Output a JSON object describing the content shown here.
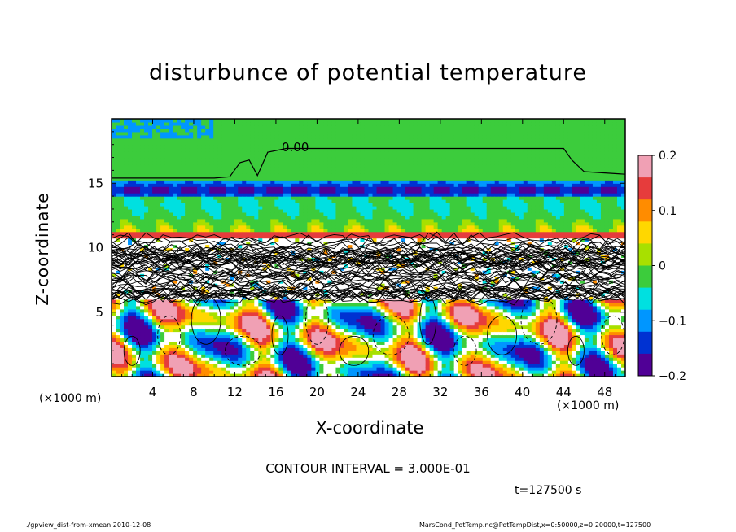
{
  "chart_data": {
    "type": "heatmap",
    "title": "disturbunce of potential temperature",
    "xlabel": "X-coordinate",
    "ylabel": "Z-coordinate",
    "x_unit": "(×1000 m)",
    "y_unit": "(×1000 m)",
    "xlim": [
      0,
      50
    ],
    "ylim": [
      0,
      20
    ],
    "x_ticks": [
      "4",
      "8",
      "12",
      "16",
      "20",
      "24",
      "28",
      "32",
      "36",
      "40",
      "44",
      "48"
    ],
    "y_ticks": [
      "5",
      "10",
      "15"
    ],
    "colorbar": {
      "range": [
        -0.2,
        0.2
      ],
      "tick_labels": [
        "0.2",
        "0.1",
        "0",
        "−0.1",
        "−0.2"
      ],
      "colors": [
        "#f0a0b4",
        "#e63c3c",
        "#ff8c00",
        "#ffd700",
        "#a8e000",
        "#3ccc3c",
        "#00e0e0",
        "#0096ff",
        "#0032d2",
        "#500096"
      ]
    },
    "contour_label": "0.00",
    "layers": [
      {
        "z_range": [
          0,
          6
        ],
        "description": "convective cells, values -0.2 to 0.2"
      },
      {
        "z_range": [
          6,
          11
        ],
        "description": "dense contour region near 0"
      },
      {
        "z_range": [
          11,
          20
        ],
        "description": "mostly 0 with negative band near z=14"
      }
    ]
  },
  "contour_interval": "CONTOUR INTERVAL = 3.000E-01",
  "time_label": "t=127500 s",
  "footer_left": "./gpview_dist-from-xmean   2010-12-08",
  "footer_right": "MarsCond_PotTemp.nc@PotTempDist,x=0:50000,z=0:20000,t=127500"
}
